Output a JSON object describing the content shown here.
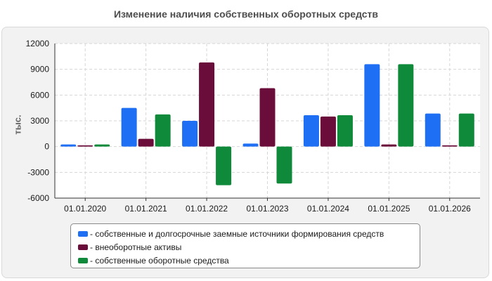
{
  "chart_data": {
    "type": "bar",
    "title": "Изменение наличия собственных оборотных средств",
    "ylabel": "тыс.",
    "ylim": [
      -6000,
      12000
    ],
    "yticks": [
      "12000",
      "9000",
      "6000",
      "3000",
      "0",
      "-3000",
      "-6000"
    ],
    "categories": [
      "01.01.2020",
      "01.01.2021",
      "01.01.2022",
      "01.01.2023",
      "01.01.2024",
      "01.01.2025",
      "01.01.2026"
    ],
    "series": [
      {
        "name": "- собственные и долгосрочные заемные источники формирования средств",
        "color": "#1f6ff4",
        "values": [
          250,
          4500,
          3000,
          350,
          3650,
          9600,
          3850
        ]
      },
      {
        "name": "- внеоборотные активы",
        "color": "#6b0d3a",
        "values": [
          150,
          900,
          9800,
          6800,
          3500,
          250,
          150
        ]
      },
      {
        "name": "- собственные оборотные средства",
        "color": "#0f8a3a",
        "values": [
          250,
          3750,
          -4500,
          -4300,
          3650,
          9600,
          3850
        ]
      }
    ],
    "grid": true,
    "legend_position": "bottom"
  }
}
